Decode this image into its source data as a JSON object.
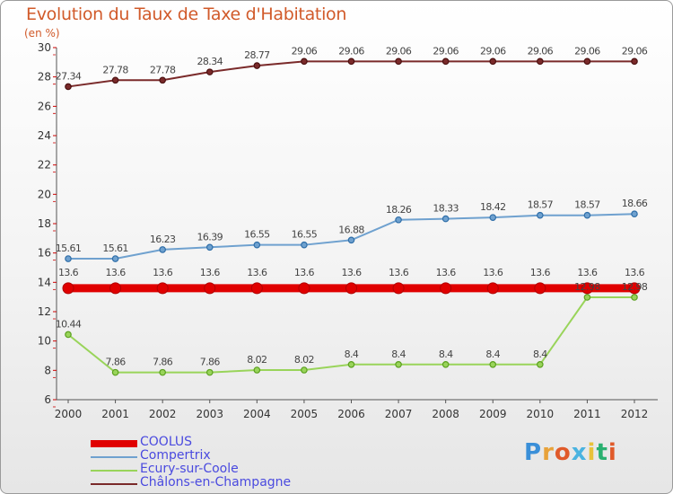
{
  "title": "Evolution du Taux de Taxe d'Habitation",
  "subtitle": "(en %)",
  "logo": "Proxiti",
  "chart_data": {
    "type": "line",
    "x": [
      "2000",
      "2001",
      "2002",
      "2003",
      "2004",
      "2005",
      "2006",
      "2007",
      "2008",
      "2009",
      "2010",
      "2011",
      "2012"
    ],
    "ylim": [
      6,
      30
    ],
    "yticks": [
      6,
      8,
      10,
      12,
      14,
      16,
      18,
      20,
      22,
      24,
      26,
      28,
      30
    ],
    "grid": false,
    "legend_position": "bottom-left",
    "series": [
      {
        "name": "COOLUS",
        "color": "#e00000",
        "values": [
          13.6,
          13.6,
          13.6,
          13.6,
          13.6,
          13.6,
          13.6,
          13.6,
          13.6,
          13.6,
          13.6,
          13.6,
          13.6
        ],
        "labels": [
          "13.6",
          "13.6",
          "13.6",
          "13.6",
          "13.6",
          "13.6",
          "13.6",
          "13.6",
          "13.6",
          "13.6",
          "13.6",
          "13.6",
          "13.6"
        ]
      },
      {
        "name": "Compertrix",
        "color": "#6fa1cf",
        "values": [
          15.61,
          15.61,
          16.23,
          16.39,
          16.55,
          16.55,
          16.88,
          18.26,
          18.33,
          18.42,
          18.57,
          18.57,
          18.66
        ],
        "labels": [
          "15.61",
          "15.61",
          "16.23",
          "16.39",
          "16.55",
          "16.55",
          "16.88",
          "18.26",
          "18.33",
          "18.42",
          "18.57",
          "18.57",
          "18.66"
        ]
      },
      {
        "name": "Ecury-sur-Coole",
        "color": "#99d45a",
        "values": [
          10.44,
          7.86,
          7.86,
          7.86,
          8.02,
          8.02,
          8.4,
          8.4,
          8.4,
          8.4,
          8.4,
          12.98,
          12.98
        ],
        "labels": [
          "10.44",
          "7.86",
          "7.86",
          "7.86",
          "8.02",
          "8.02",
          "8.4",
          "8.4",
          "8.4",
          "8.4",
          "8.4",
          "12.98",
          "12.98"
        ]
      },
      {
        "name": "Châlons-en-Champagne",
        "color": "#7a2a2a",
        "values": [
          27.34,
          27.78,
          27.78,
          28.34,
          28.77,
          29.06,
          29.06,
          29.06,
          29.06,
          29.06,
          29.06,
          29.06,
          29.06
        ],
        "labels": [
          "27.34",
          "27.78",
          "27.78",
          "28.34",
          "28.77",
          "29.06",
          "29.06",
          "29.06",
          "29.06",
          "29.06",
          "29.06",
          "29.06",
          "29.06"
        ]
      }
    ]
  }
}
